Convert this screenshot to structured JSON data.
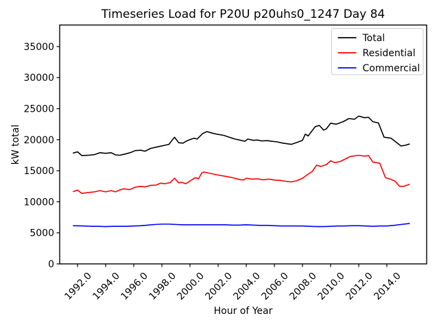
{
  "title": "Timeseries Load for P20U p20uhs0_1247  Day 84",
  "chart_data": {
    "type": "line",
    "title": "Timeseries Load for P20U p20uhs0_1247  Day 84",
    "xlabel": "Hour of Year",
    "ylabel": "kW total",
    "xlim": [
      1990.73,
      2016.83
    ],
    "ylim": [
      0,
      38470
    ],
    "grid": false,
    "legend_position": "upper-right",
    "background_color": "#ffffff",
    "x_ticks": {
      "values": [
        1992,
        1994,
        1996,
        1998,
        2000,
        2002,
        2004,
        2006,
        2008,
        2010,
        2012,
        2014
      ],
      "labels": [
        "1992.0",
        "1994.0",
        "1996.0",
        "1998.0",
        "2000.0",
        "2002.0",
        "2004.0",
        "2006.0",
        "2008.0",
        "2010.0",
        "2012.0",
        "2014.0"
      ]
    },
    "y_ticks": {
      "values": [
        0,
        5000,
        10000,
        15000,
        20000,
        25000,
        30000,
        35000
      ],
      "labels": [
        "0",
        "5000",
        "10000",
        "15000",
        "20000",
        "25000",
        "30000",
        "35000"
      ]
    },
    "series": [
      {
        "name": "Total",
        "color": "#000000",
        "points": [
          [
            1991.7,
            17850
          ],
          [
            1992.0,
            18050
          ],
          [
            1992.3,
            17450
          ],
          [
            1992.8,
            17500
          ],
          [
            1993.2,
            17600
          ],
          [
            1993.6,
            17900
          ],
          [
            1994.0,
            17800
          ],
          [
            1994.4,
            17900
          ],
          [
            1994.7,
            17550
          ],
          [
            1995.0,
            17500
          ],
          [
            1995.4,
            17700
          ],
          [
            1995.8,
            17950
          ],
          [
            1996.1,
            18250
          ],
          [
            1996.5,
            18300
          ],
          [
            1996.8,
            18150
          ],
          [
            1997.2,
            18600
          ],
          [
            1997.6,
            18800
          ],
          [
            1997.9,
            18950
          ],
          [
            1998.2,
            19100
          ],
          [
            1998.5,
            19250
          ],
          [
            1998.7,
            19850
          ],
          [
            1998.9,
            20400
          ],
          [
            1999.2,
            19500
          ],
          [
            1999.5,
            19450
          ],
          [
            1999.8,
            19850
          ],
          [
            2000.1,
            20100
          ],
          [
            2000.3,
            20250
          ],
          [
            2000.5,
            20100
          ],
          [
            2000.9,
            21000
          ],
          [
            2001.2,
            21300
          ],
          [
            2001.6,
            21050
          ],
          [
            2002.0,
            20850
          ],
          [
            2002.4,
            20700
          ],
          [
            2002.8,
            20400
          ],
          [
            2003.2,
            20100
          ],
          [
            2003.6,
            19900
          ],
          [
            2003.9,
            19750
          ],
          [
            2004.1,
            20100
          ],
          [
            2004.5,
            19900
          ],
          [
            2004.8,
            19950
          ],
          [
            2005.1,
            19800
          ],
          [
            2005.5,
            19850
          ],
          [
            2005.8,
            19750
          ],
          [
            2006.2,
            19650
          ],
          [
            2006.6,
            19450
          ],
          [
            2006.9,
            19350
          ],
          [
            2007.2,
            19250
          ],
          [
            2007.6,
            19550
          ],
          [
            2008.0,
            19900
          ],
          [
            2008.2,
            20900
          ],
          [
            2008.4,
            20600
          ],
          [
            2008.9,
            22100
          ],
          [
            2009.2,
            22300
          ],
          [
            2009.5,
            21550
          ],
          [
            2009.7,
            21750
          ],
          [
            2010.0,
            22650
          ],
          [
            2010.4,
            22500
          ],
          [
            2010.9,
            22900
          ],
          [
            2011.3,
            23400
          ],
          [
            2011.7,
            23300
          ],
          [
            2012.0,
            23800
          ],
          [
            2012.4,
            23550
          ],
          [
            2012.7,
            23600
          ],
          [
            2013.0,
            22900
          ],
          [
            2013.4,
            22700
          ],
          [
            2013.8,
            20400
          ],
          [
            2014.3,
            20250
          ],
          [
            2014.6,
            19700
          ],
          [
            2015.0,
            19000
          ],
          [
            2015.3,
            19100
          ],
          [
            2015.6,
            19300
          ]
        ]
      },
      {
        "name": "Residential",
        "color": "#ff0000",
        "points": [
          [
            1991.7,
            11650
          ],
          [
            1992.0,
            11900
          ],
          [
            1992.3,
            11350
          ],
          [
            1992.8,
            11500
          ],
          [
            1993.2,
            11600
          ],
          [
            1993.6,
            11800
          ],
          [
            1994.0,
            11600
          ],
          [
            1994.4,
            11800
          ],
          [
            1994.7,
            11600
          ],
          [
            1995.0,
            11900
          ],
          [
            1995.3,
            12100
          ],
          [
            1995.7,
            11950
          ],
          [
            1996.1,
            12350
          ],
          [
            1996.5,
            12500
          ],
          [
            1996.8,
            12400
          ],
          [
            1997.2,
            12650
          ],
          [
            1997.6,
            12700
          ],
          [
            1997.9,
            13000
          ],
          [
            1998.2,
            12900
          ],
          [
            1998.6,
            13100
          ],
          [
            1998.9,
            13800
          ],
          [
            1999.2,
            13050
          ],
          [
            1999.4,
            13150
          ],
          [
            1999.7,
            12900
          ],
          [
            2000.15,
            13580
          ],
          [
            2000.4,
            13900
          ],
          [
            2000.6,
            13690
          ],
          [
            2000.85,
            14680
          ],
          [
            2001.0,
            14790
          ],
          [
            2001.45,
            14570
          ],
          [
            2001.9,
            14350
          ],
          [
            2002.4,
            14150
          ],
          [
            2003.0,
            13900
          ],
          [
            2003.5,
            13600
          ],
          [
            2003.8,
            13500
          ],
          [
            2004.0,
            13800
          ],
          [
            2004.4,
            13650
          ],
          [
            2004.8,
            13700
          ],
          [
            2005.2,
            13550
          ],
          [
            2005.6,
            13650
          ],
          [
            2006.0,
            13500
          ],
          [
            2006.4,
            13450
          ],
          [
            2006.8,
            13300
          ],
          [
            2007.2,
            13200
          ],
          [
            2007.6,
            13400
          ],
          [
            2008.0,
            13800
          ],
          [
            2008.3,
            14300
          ],
          [
            2008.7,
            14900
          ],
          [
            2009.0,
            15900
          ],
          [
            2009.3,
            15700
          ],
          [
            2009.7,
            16000
          ],
          [
            2010.0,
            16600
          ],
          [
            2010.3,
            16300
          ],
          [
            2010.7,
            16500
          ],
          [
            2011.0,
            16850
          ],
          [
            2011.4,
            17300
          ],
          [
            2012.0,
            17500
          ],
          [
            2012.4,
            17350
          ],
          [
            2012.7,
            17450
          ],
          [
            2013.0,
            16400
          ],
          [
            2013.5,
            16200
          ],
          [
            2013.9,
            13900
          ],
          [
            2014.3,
            13600
          ],
          [
            2014.6,
            13300
          ],
          [
            2014.9,
            12500
          ],
          [
            2015.2,
            12500
          ],
          [
            2015.6,
            12800
          ]
        ]
      },
      {
        "name": "Commercial",
        "color": "#0000ff",
        "points": [
          [
            1991.7,
            6150
          ],
          [
            1992.5,
            6100
          ],
          [
            1993.0,
            6050
          ],
          [
            1993.5,
            6050
          ],
          [
            1994.0,
            6000
          ],
          [
            1994.5,
            6050
          ],
          [
            1995.0,
            6050
          ],
          [
            1995.5,
            6050
          ],
          [
            1996.0,
            6100
          ],
          [
            1996.5,
            6150
          ],
          [
            1997.0,
            6250
          ],
          [
            1997.5,
            6350
          ],
          [
            1998.0,
            6400
          ],
          [
            1998.5,
            6400
          ],
          [
            1999.0,
            6350
          ],
          [
            1999.5,
            6300
          ],
          [
            2000.0,
            6300
          ],
          [
            2000.5,
            6300
          ],
          [
            2001.0,
            6300
          ],
          [
            2001.5,
            6300
          ],
          [
            2002.0,
            6300
          ],
          [
            2002.5,
            6300
          ],
          [
            2003.0,
            6250
          ],
          [
            2003.5,
            6250
          ],
          [
            2004.0,
            6300
          ],
          [
            2004.5,
            6250
          ],
          [
            2005.0,
            6200
          ],
          [
            2005.5,
            6200
          ],
          [
            2006.0,
            6150
          ],
          [
            2006.5,
            6100
          ],
          [
            2007.0,
            6100
          ],
          [
            2007.5,
            6100
          ],
          [
            2008.0,
            6100
          ],
          [
            2008.5,
            6050
          ],
          [
            2009.0,
            6000
          ],
          [
            2009.5,
            6000
          ],
          [
            2010.0,
            6050
          ],
          [
            2010.5,
            6100
          ],
          [
            2011.0,
            6100
          ],
          [
            2011.5,
            6150
          ],
          [
            2012.0,
            6150
          ],
          [
            2012.5,
            6100
          ],
          [
            2013.0,
            6050
          ],
          [
            2013.5,
            6100
          ],
          [
            2014.0,
            6100
          ],
          [
            2014.5,
            6200
          ],
          [
            2015.0,
            6350
          ],
          [
            2015.6,
            6500
          ]
        ]
      }
    ],
    "legend": {
      "labels": [
        "Total",
        "Residential",
        "Commercial"
      ],
      "border_color": "#cccccc"
    }
  }
}
